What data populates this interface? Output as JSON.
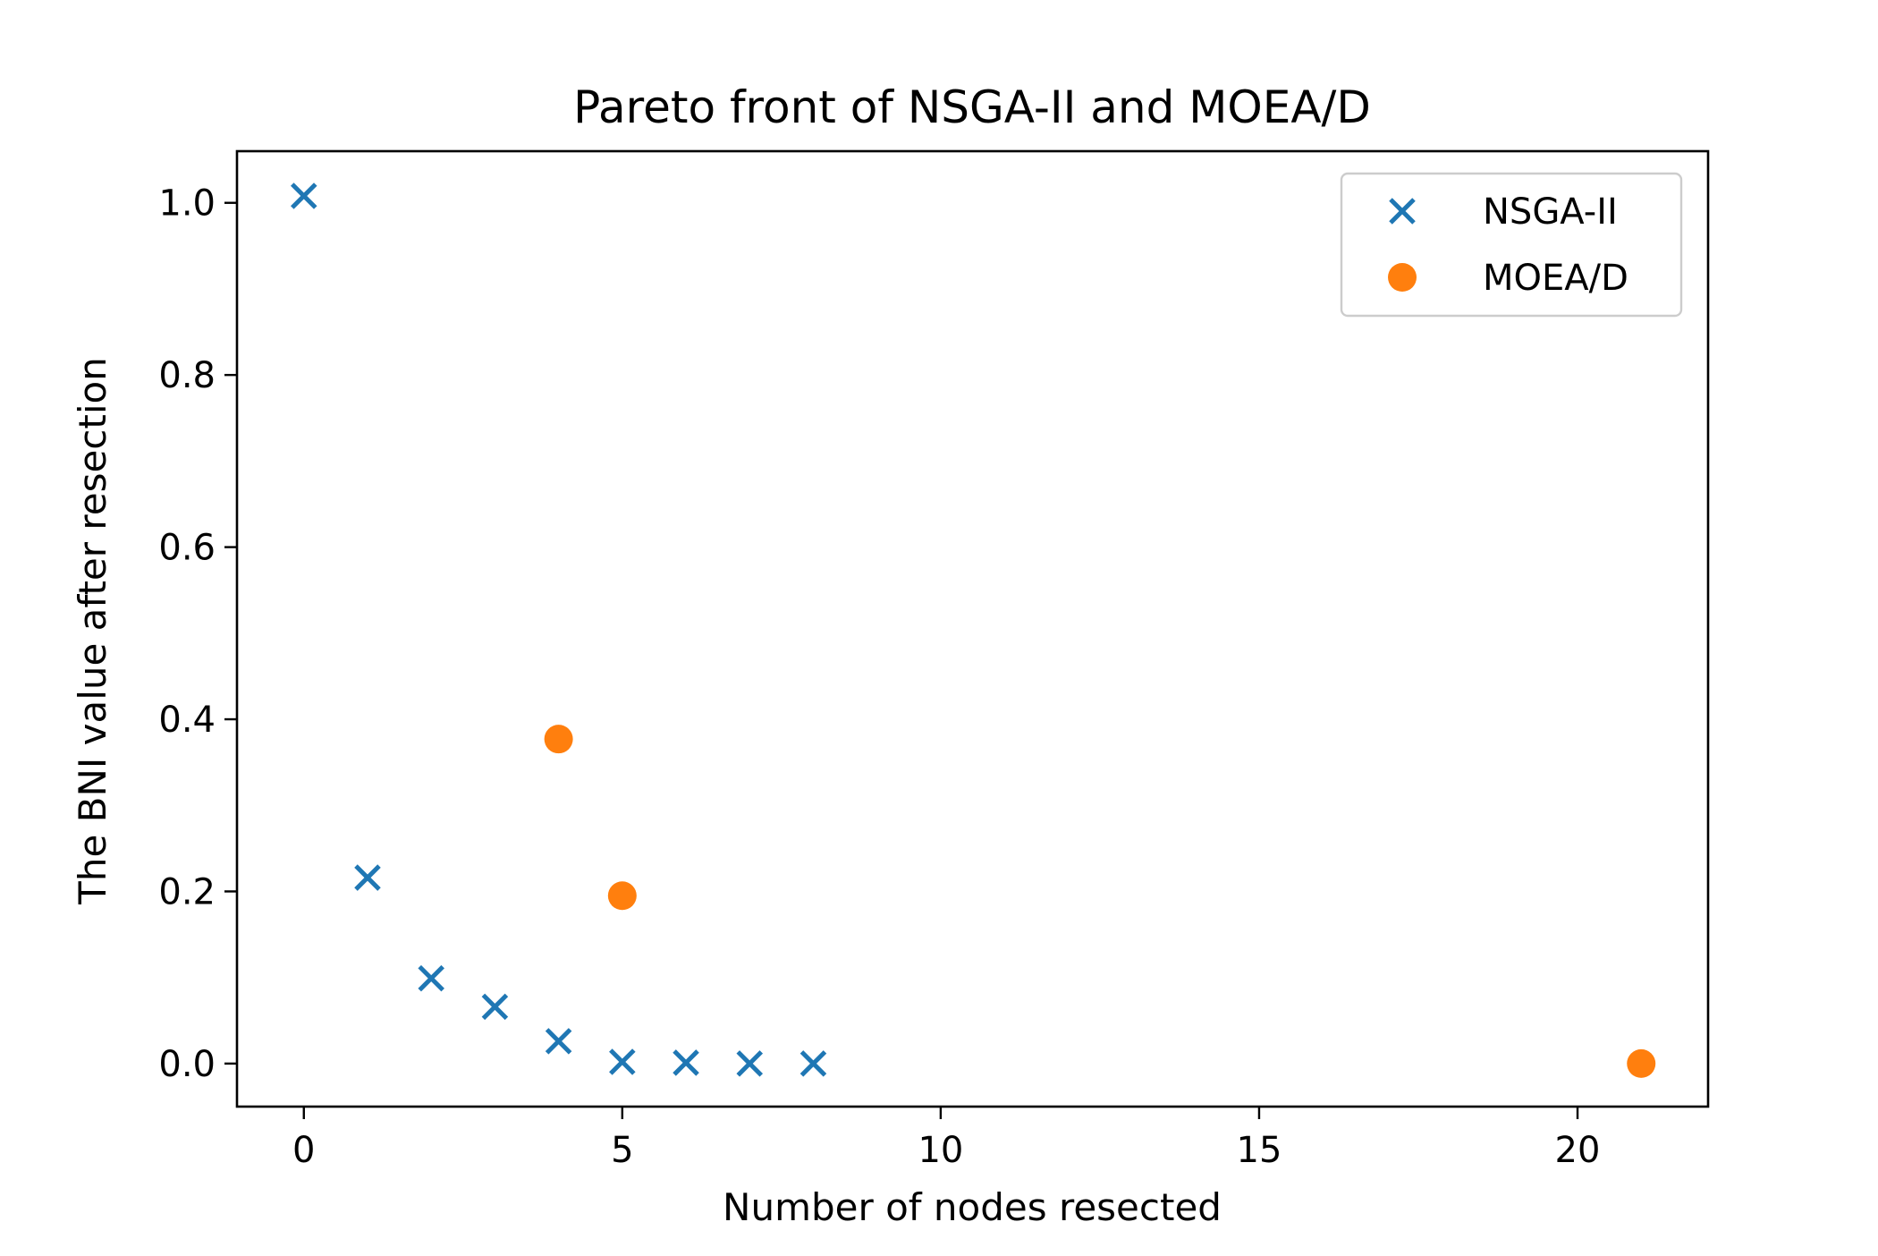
{
  "chart_data": {
    "type": "scatter",
    "title": "Pareto front of NSGA-II and MOEA/D",
    "xlabel": "Number of nodes resected",
    "ylabel": "The BNI value after resection",
    "xlim": [
      -1.05,
      22.05
    ],
    "ylim": [
      -0.05,
      1.06
    ],
    "xticks": [
      0,
      5,
      10,
      15,
      20
    ],
    "xtick_labels": [
      "0",
      "5",
      "10",
      "15",
      "20"
    ],
    "yticks": [
      0.0,
      0.2,
      0.4,
      0.6,
      0.8,
      1.0
    ],
    "ytick_labels": [
      "0.0",
      "0.2",
      "0.4",
      "0.6",
      "0.8",
      "1.0"
    ],
    "grid": false,
    "legend_position": "upper right",
    "series": [
      {
        "name": "NSGA-II",
        "marker": "x",
        "color": "#1f77b4",
        "points": [
          {
            "x": 0,
            "y": 1.008
          },
          {
            "x": 1,
            "y": 0.216
          },
          {
            "x": 2,
            "y": 0.099
          },
          {
            "x": 3,
            "y": 0.066
          },
          {
            "x": 4,
            "y": 0.026
          },
          {
            "x": 5,
            "y": 0.002
          },
          {
            "x": 6,
            "y": 0.001
          },
          {
            "x": 7,
            "y": 0.0
          },
          {
            "x": 8,
            "y": 0.0
          }
        ]
      },
      {
        "name": "MOEA/D",
        "marker": "o",
        "color": "#ff7f0e",
        "points": [
          {
            "x": 4,
            "y": 0.377
          },
          {
            "x": 5,
            "y": 0.195
          },
          {
            "x": 21,
            "y": 0.0
          }
        ]
      }
    ]
  }
}
